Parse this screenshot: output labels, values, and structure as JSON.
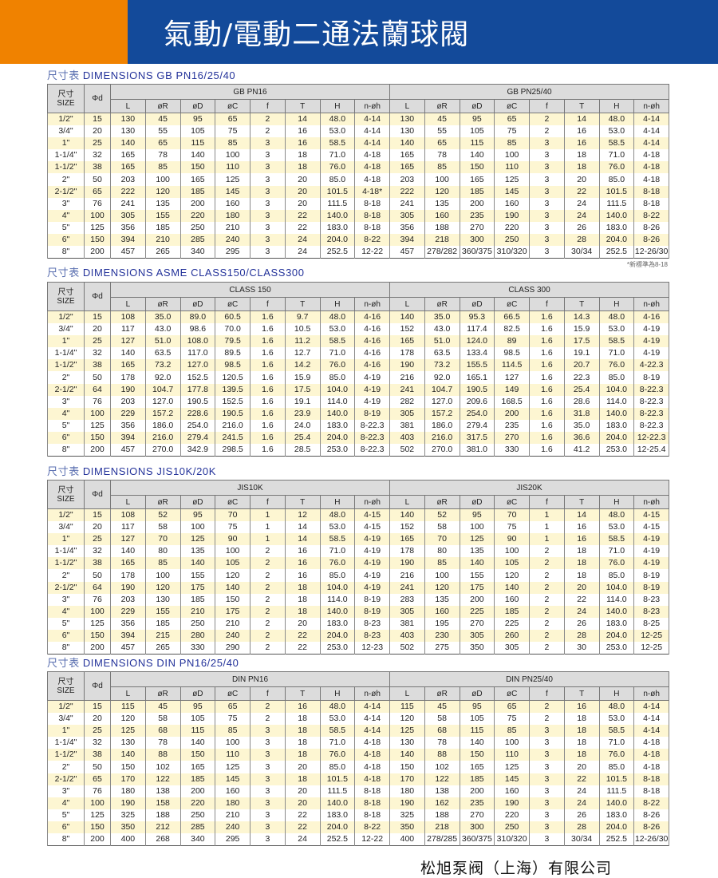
{
  "header": {
    "title": "氣動/電動二通法蘭球閥",
    "colors": {
      "orange": "#f08200",
      "blue": "#134a9a"
    }
  },
  "size_label_cn": "尺寸",
  "size_label_en": "SIZE",
  "phid_label": "Φd",
  "columns": [
    "L",
    "øR",
    "øD",
    "øC",
    "f",
    "T",
    "H",
    "n-øh"
  ],
  "footnote": "*新標準為8-18",
  "company": "松旭泵阀（上海）有限公司",
  "tables": [
    {
      "title_cn": "尺寸表",
      "title_en": "DIMENSIONS GB PN16/25/40",
      "groups": [
        "GB PN16",
        "GB PN25/40"
      ],
      "rows": [
        [
          "1/2\"",
          "15",
          "130",
          "45",
          "95",
          "65",
          "2",
          "14",
          "48.0",
          "4-14",
          "130",
          "45",
          "95",
          "65",
          "2",
          "14",
          "48.0",
          "4-14"
        ],
        [
          "3/4\"",
          "20",
          "130",
          "55",
          "105",
          "75",
          "2",
          "16",
          "53.0",
          "4-14",
          "130",
          "55",
          "105",
          "75",
          "2",
          "16",
          "53.0",
          "4-14"
        ],
        [
          "1\"",
          "25",
          "140",
          "65",
          "115",
          "85",
          "3",
          "16",
          "58.5",
          "4-14",
          "140",
          "65",
          "115",
          "85",
          "3",
          "16",
          "58.5",
          "4-14"
        ],
        [
          "1-1/4\"",
          "32",
          "165",
          "78",
          "140",
          "100",
          "3",
          "18",
          "71.0",
          "4-18",
          "165",
          "78",
          "140",
          "100",
          "3",
          "18",
          "71.0",
          "4-18"
        ],
        [
          "1-1/2\"",
          "38",
          "165",
          "85",
          "150",
          "110",
          "3",
          "18",
          "76.0",
          "4-18",
          "165",
          "85",
          "150",
          "110",
          "3",
          "18",
          "76.0",
          "4-18"
        ],
        [
          "2\"",
          "50",
          "203",
          "100",
          "165",
          "125",
          "3",
          "20",
          "85.0",
          "4-18",
          "203",
          "100",
          "165",
          "125",
          "3",
          "20",
          "85.0",
          "4-18"
        ],
        [
          "2-1/2\"",
          "65",
          "222",
          "120",
          "185",
          "145",
          "3",
          "20",
          "101.5",
          "4-18*",
          "222",
          "120",
          "185",
          "145",
          "3",
          "22",
          "101.5",
          "8-18"
        ],
        [
          "3\"",
          "76",
          "241",
          "135",
          "200",
          "160",
          "3",
          "20",
          "111.5",
          "8-18",
          "241",
          "135",
          "200",
          "160",
          "3",
          "24",
          "111.5",
          "8-18"
        ],
        [
          "4\"",
          "100",
          "305",
          "155",
          "220",
          "180",
          "3",
          "22",
          "140.0",
          "8-18",
          "305",
          "160",
          "235",
          "190",
          "3",
          "24",
          "140.0",
          "8-22"
        ],
        [
          "5\"",
          "125",
          "356",
          "185",
          "250",
          "210",
          "3",
          "22",
          "183.0",
          "8-18",
          "356",
          "188",
          "270",
          "220",
          "3",
          "26",
          "183.0",
          "8-26"
        ],
        [
          "6\"",
          "150",
          "394",
          "210",
          "285",
          "240",
          "3",
          "24",
          "204.0",
          "8-22",
          "394",
          "218",
          "300",
          "250",
          "3",
          "28",
          "204.0",
          "8-26"
        ],
        [
          "8\"",
          "200",
          "457",
          "265",
          "340",
          "295",
          "3",
          "24",
          "252.5",
          "12-22",
          "457",
          "278/282",
          "360/375",
          "310/320",
          "3",
          "30/34",
          "252.5",
          "12-26/30"
        ]
      ]
    },
    {
      "title_cn": "尺寸表",
      "title_en": "DIMENSIONS ASME CLASS150/CLASS300",
      "groups": [
        "CLASS 150",
        "CLASS 300"
      ],
      "rows": [
        [
          "1/2\"",
          "15",
          "108",
          "35.0",
          "89.0",
          "60.5",
          "1.6",
          "9.7",
          "48.0",
          "4-16",
          "140",
          "35.0",
          "95.3",
          "66.5",
          "1.6",
          "14.3",
          "48.0",
          "4-16"
        ],
        [
          "3/4\"",
          "20",
          "117",
          "43.0",
          "98.6",
          "70.0",
          "1.6",
          "10.5",
          "53.0",
          "4-16",
          "152",
          "43.0",
          "117.4",
          "82.5",
          "1.6",
          "15.9",
          "53.0",
          "4-19"
        ],
        [
          "1\"",
          "25",
          "127",
          "51.0",
          "108.0",
          "79.5",
          "1.6",
          "11.2",
          "58.5",
          "4-16",
          "165",
          "51.0",
          "124.0",
          "89",
          "1.6",
          "17.5",
          "58.5",
          "4-19"
        ],
        [
          "1-1/4\"",
          "32",
          "140",
          "63.5",
          "117.0",
          "89.5",
          "1.6",
          "12.7",
          "71.0",
          "4-16",
          "178",
          "63.5",
          "133.4",
          "98.5",
          "1.6",
          "19.1",
          "71.0",
          "4-19"
        ],
        [
          "1-1/2\"",
          "38",
          "165",
          "73.2",
          "127.0",
          "98.5",
          "1.6",
          "14.2",
          "76.0",
          "4-16",
          "190",
          "73.2",
          "155.5",
          "114.5",
          "1.6",
          "20.7",
          "76.0",
          "4-22.3"
        ],
        [
          "2\"",
          "50",
          "178",
          "92.0",
          "152.5",
          "120.5",
          "1.6",
          "15.9",
          "85.0",
          "4-19",
          "216",
          "92.0",
          "165.1",
          "127",
          "1.6",
          "22.3",
          "85.0",
          "8-19"
        ],
        [
          "2-1/2\"",
          "64",
          "190",
          "104.7",
          "177.8",
          "139.5",
          "1.6",
          "17.5",
          "104.0",
          "4-19",
          "241",
          "104.7",
          "190.5",
          "149",
          "1.6",
          "25.4",
          "104.0",
          "8-22.3"
        ],
        [
          "3\"",
          "76",
          "203",
          "127.0",
          "190.5",
          "152.5",
          "1.6",
          "19.1",
          "114.0",
          "4-19",
          "282",
          "127.0",
          "209.6",
          "168.5",
          "1.6",
          "28.6",
          "114.0",
          "8-22.3"
        ],
        [
          "4\"",
          "100",
          "229",
          "157.2",
          "228.6",
          "190.5",
          "1.6",
          "23.9",
          "140.0",
          "8-19",
          "305",
          "157.2",
          "254.0",
          "200",
          "1.6",
          "31.8",
          "140.0",
          "8-22.3"
        ],
        [
          "5\"",
          "125",
          "356",
          "186.0",
          "254.0",
          "216.0",
          "1.6",
          "24.0",
          "183.0",
          "8-22.3",
          "381",
          "186.0",
          "279.4",
          "235",
          "1.6",
          "35.0",
          "183.0",
          "8-22.3"
        ],
        [
          "6\"",
          "150",
          "394",
          "216.0",
          "279.4",
          "241.5",
          "1.6",
          "25.4",
          "204.0",
          "8-22.3",
          "403",
          "216.0",
          "317.5",
          "270",
          "1.6",
          "36.6",
          "204.0",
          "12-22.3"
        ],
        [
          "8\"",
          "200",
          "457",
          "270.0",
          "342.9",
          "298.5",
          "1.6",
          "28.5",
          "253.0",
          "8-22.3",
          "502",
          "270.0",
          "381.0",
          "330",
          "1.6",
          "41.2",
          "253.0",
          "12-25.4"
        ]
      ]
    },
    {
      "title_cn": "尺寸表",
      "title_en": "DIMENSIONS JIS10K/20K",
      "groups": [
        "JIS10K",
        "JIS20K"
      ],
      "rows": [
        [
          "1/2\"",
          "15",
          "108",
          "52",
          "95",
          "70",
          "1",
          "12",
          "48.0",
          "4-15",
          "140",
          "52",
          "95",
          "70",
          "1",
          "14",
          "48.0",
          "4-15"
        ],
        [
          "3/4\"",
          "20",
          "117",
          "58",
          "100",
          "75",
          "1",
          "14",
          "53.0",
          "4-15",
          "152",
          "58",
          "100",
          "75",
          "1",
          "16",
          "53.0",
          "4-15"
        ],
        [
          "1\"",
          "25",
          "127",
          "70",
          "125",
          "90",
          "1",
          "14",
          "58.5",
          "4-19",
          "165",
          "70",
          "125",
          "90",
          "1",
          "16",
          "58.5",
          "4-19"
        ],
        [
          "1-1/4\"",
          "32",
          "140",
          "80",
          "135",
          "100",
          "2",
          "16",
          "71.0",
          "4-19",
          "178",
          "80",
          "135",
          "100",
          "2",
          "18",
          "71.0",
          "4-19"
        ],
        [
          "1-1/2\"",
          "38",
          "165",
          "85",
          "140",
          "105",
          "2",
          "16",
          "76.0",
          "4-19",
          "190",
          "85",
          "140",
          "105",
          "2",
          "18",
          "76.0",
          "4-19"
        ],
        [
          "2\"",
          "50",
          "178",
          "100",
          "155",
          "120",
          "2",
          "16",
          "85.0",
          "4-19",
          "216",
          "100",
          "155",
          "120",
          "2",
          "18",
          "85.0",
          "8-19"
        ],
        [
          "2-1/2\"",
          "64",
          "190",
          "120",
          "175",
          "140",
          "2",
          "18",
          "104.0",
          "4-19",
          "241",
          "120",
          "175",
          "140",
          "2",
          "20",
          "104.0",
          "8-19"
        ],
        [
          "3\"",
          "76",
          "203",
          "130",
          "185",
          "150",
          "2",
          "18",
          "114.0",
          "8-19",
          "283",
          "135",
          "200",
          "160",
          "2",
          "22",
          "114.0",
          "8-23"
        ],
        [
          "4\"",
          "100",
          "229",
          "155",
          "210",
          "175",
          "2",
          "18",
          "140.0",
          "8-19",
          "305",
          "160",
          "225",
          "185",
          "2",
          "24",
          "140.0",
          "8-23"
        ],
        [
          "5\"",
          "125",
          "356",
          "185",
          "250",
          "210",
          "2",
          "20",
          "183.0",
          "8-23",
          "381",
          "195",
          "270",
          "225",
          "2",
          "26",
          "183.0",
          "8-25"
        ],
        [
          "6\"",
          "150",
          "394",
          "215",
          "280",
          "240",
          "2",
          "22",
          "204.0",
          "8-23",
          "403",
          "230",
          "305",
          "260",
          "2",
          "28",
          "204.0",
          "12-25"
        ],
        [
          "8\"",
          "200",
          "457",
          "265",
          "330",
          "290",
          "2",
          "22",
          "253.0",
          "12-23",
          "502",
          "275",
          "350",
          "305",
          "2",
          "30",
          "253.0",
          "12-25"
        ]
      ]
    },
    {
      "title_cn": "尺寸表",
      "title_en": "DIMENSIONS DIN PN16/25/40",
      "groups": [
        "DIN PN16",
        "DIN PN25/40"
      ],
      "rows": [
        [
          "1/2\"",
          "15",
          "115",
          "45",
          "95",
          "65",
          "2",
          "16",
          "48.0",
          "4-14",
          "115",
          "45",
          "95",
          "65",
          "2",
          "16",
          "48.0",
          "4-14"
        ],
        [
          "3/4\"",
          "20",
          "120",
          "58",
          "105",
          "75",
          "2",
          "18",
          "53.0",
          "4-14",
          "120",
          "58",
          "105",
          "75",
          "2",
          "18",
          "53.0",
          "4-14"
        ],
        [
          "1\"",
          "25",
          "125",
          "68",
          "115",
          "85",
          "3",
          "18",
          "58.5",
          "4-14",
          "125",
          "68",
          "115",
          "85",
          "3",
          "18",
          "58.5",
          "4-14"
        ],
        [
          "1-1/4\"",
          "32",
          "130",
          "78",
          "140",
          "100",
          "3",
          "18",
          "71.0",
          "4-18",
          "130",
          "78",
          "140",
          "100",
          "3",
          "18",
          "71.0",
          "4-18"
        ],
        [
          "1-1/2\"",
          "38",
          "140",
          "88",
          "150",
          "110",
          "3",
          "18",
          "76.0",
          "4-18",
          "140",
          "88",
          "150",
          "110",
          "3",
          "18",
          "76.0",
          "4-18"
        ],
        [
          "2\"",
          "50",
          "150",
          "102",
          "165",
          "125",
          "3",
          "20",
          "85.0",
          "4-18",
          "150",
          "102",
          "165",
          "125",
          "3",
          "20",
          "85.0",
          "4-18"
        ],
        [
          "2-1/2\"",
          "65",
          "170",
          "122",
          "185",
          "145",
          "3",
          "18",
          "101.5",
          "4-18",
          "170",
          "122",
          "185",
          "145",
          "3",
          "22",
          "101.5",
          "8-18"
        ],
        [
          "3\"",
          "76",
          "180",
          "138",
          "200",
          "160",
          "3",
          "20",
          "111.5",
          "8-18",
          "180",
          "138",
          "200",
          "160",
          "3",
          "24",
          "111.5",
          "8-18"
        ],
        [
          "4\"",
          "100",
          "190",
          "158",
          "220",
          "180",
          "3",
          "20",
          "140.0",
          "8-18",
          "190",
          "162",
          "235",
          "190",
          "3",
          "24",
          "140.0",
          "8-22"
        ],
        [
          "5\"",
          "125",
          "325",
          "188",
          "250",
          "210",
          "3",
          "22",
          "183.0",
          "8-18",
          "325",
          "188",
          "270",
          "220",
          "3",
          "26",
          "183.0",
          "8-26"
        ],
        [
          "6\"",
          "150",
          "350",
          "212",
          "285",
          "240",
          "3",
          "22",
          "204.0",
          "8-22",
          "350",
          "218",
          "300",
          "250",
          "3",
          "28",
          "204.0",
          "8-26"
        ],
        [
          "8\"",
          "200",
          "400",
          "268",
          "340",
          "295",
          "3",
          "24",
          "252.5",
          "12-22",
          "400",
          "278/285",
          "360/375",
          "310/320",
          "3",
          "30/34",
          "252.5",
          "12-26/30"
        ]
      ]
    }
  ]
}
